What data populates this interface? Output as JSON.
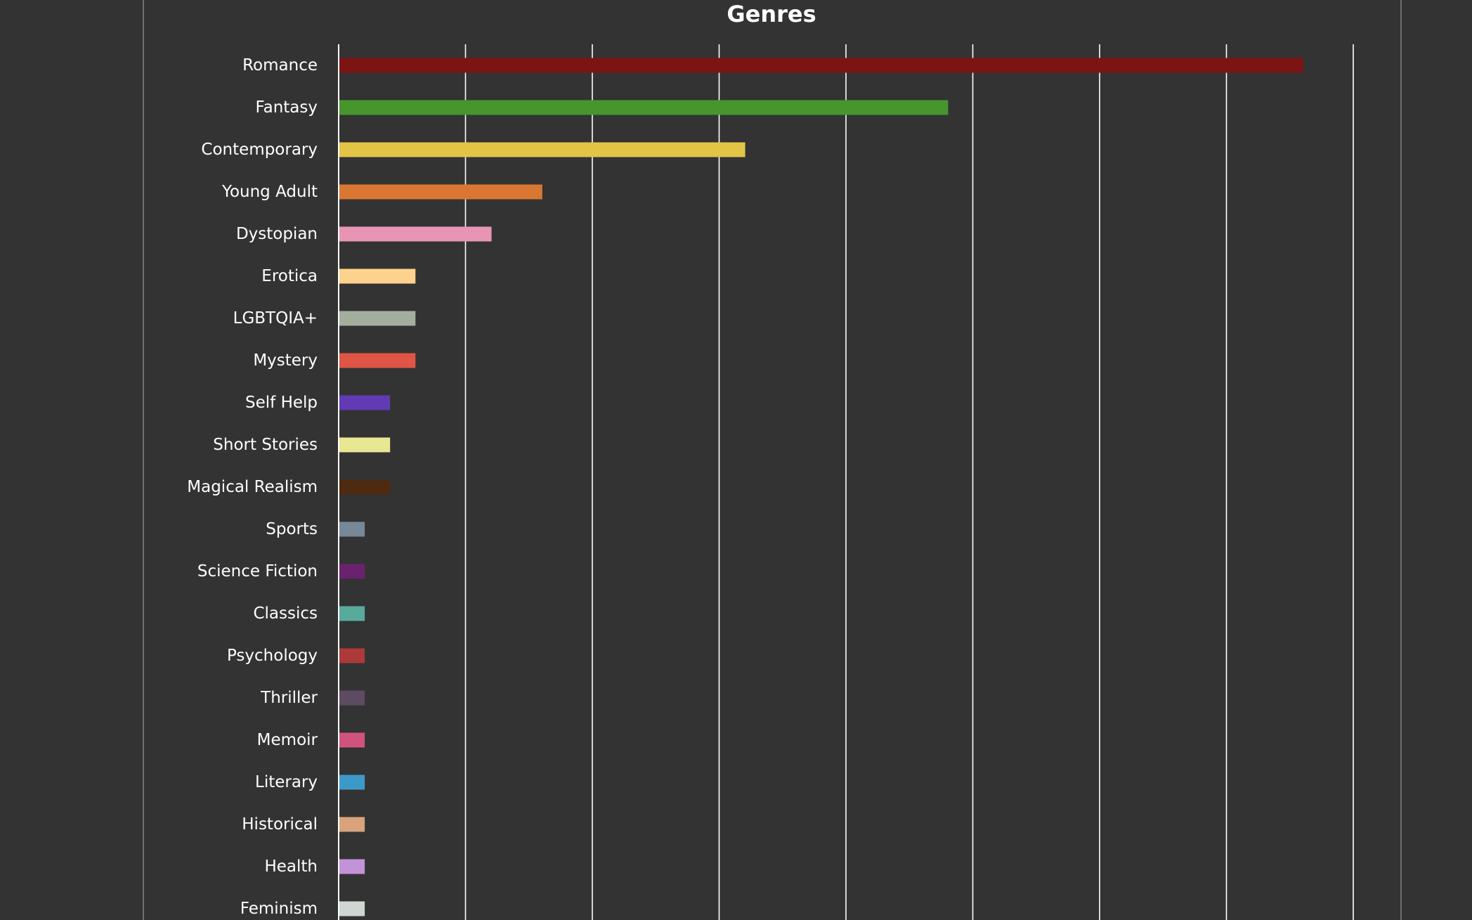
{
  "chart_data": {
    "type": "bar",
    "orientation": "horizontal",
    "title": "Genres",
    "xlabel": "",
    "ylabel": "",
    "xlim": [
      0,
      40
    ],
    "grid": true,
    "background": "#333333",
    "categories": [
      "Romance",
      "Fantasy",
      "Contemporary",
      "Young Adult",
      "Dystopian",
      "Erotica",
      "LGBTQIA+",
      "Mystery",
      "Self Help",
      "Short Stories",
      "Magical Realism",
      "Sports",
      "Science Fiction",
      "Classics",
      "Psychology",
      "Thriller",
      "Memoir",
      "Literary",
      "Historical",
      "Health",
      "Feminism"
    ],
    "values": [
      38,
      24,
      16,
      8,
      6,
      3,
      3,
      3,
      2,
      2,
      2,
      1,
      1,
      1,
      1,
      1,
      1,
      1,
      1,
      1,
      1
    ],
    "colors": [
      "#7d1414",
      "#46962d",
      "#e3c446",
      "#d97732",
      "#e895b5",
      "#fcd28d",
      "#a4ae9e",
      "#e05545",
      "#613ab4",
      "#e8e793",
      "#4e2b10",
      "#778898",
      "#6b226e",
      "#58aa9b",
      "#ad3939",
      "#5d4b62",
      "#d0537e",
      "#3e99cb",
      "#d9a37b",
      "#c393d7",
      "#d0d6d2"
    ]
  }
}
